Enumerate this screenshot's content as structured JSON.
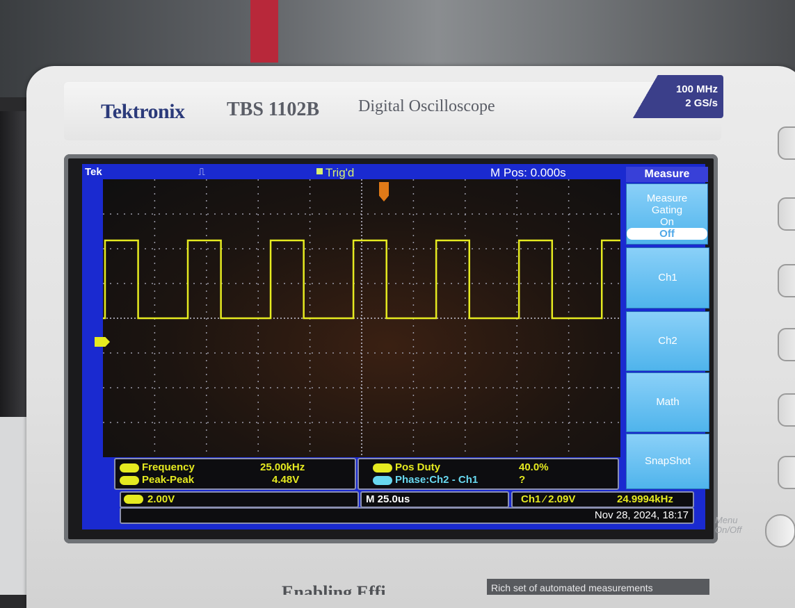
{
  "device": {
    "brand": "Tektronix",
    "model": "TBS 1102B",
    "description": "Digital Oscilloscope",
    "bandwidth": "100 MHz",
    "sample_rate": "2 GS/s"
  },
  "status": {
    "tek": "Tek",
    "trigger_state": "Trig'd",
    "m_pos": "M Pos: 0.000s"
  },
  "menu": {
    "title": "Measure",
    "gating_line1": "Measure",
    "gating_line2": "Gating",
    "gating_on": "On",
    "gating_off": "Off",
    "ch1": "Ch1",
    "ch2": "Ch2",
    "math": "Math",
    "snapshot": "SnapShot"
  },
  "measurements": {
    "frequency_label": "Frequency",
    "frequency_value": "25.00kHz",
    "peak_label": "Peak-Peak",
    "peak_value": "4.48V",
    "duty_label": "Pos Duty",
    "duty_value": "40.0%",
    "phase_label": "Phase:Ch2 - Ch1",
    "phase_value": "?"
  },
  "info": {
    "ch1_scale": "2.00V",
    "timebase": "M 25.0us",
    "trigger": "Ch1 ⁄ 2.09V",
    "trigger_freq": "24.9994kHz",
    "datetime": "Nov 28, 2024, 18:17"
  },
  "side": {
    "menu_on_off_line1": "Menu",
    "menu_on_off_line2": "On/Off"
  },
  "footer": {
    "logo_text": "Enabling Effi",
    "caption": "Rich set of automated measurements"
  },
  "chart_data": {
    "type": "line",
    "title": "",
    "xlabel": "",
    "ylabel": "",
    "series": [
      {
        "color": "#e5ea20",
        "frequency_hz": 25000,
        "duty": 0.4,
        "high_v": 4.48,
        "low_v": 0
      }
    ],
    "x_per_div_us": 25,
    "y_per_div_v": 2,
    "divisions_x": 10,
    "divisions_y": 8,
    "grid": true
  }
}
